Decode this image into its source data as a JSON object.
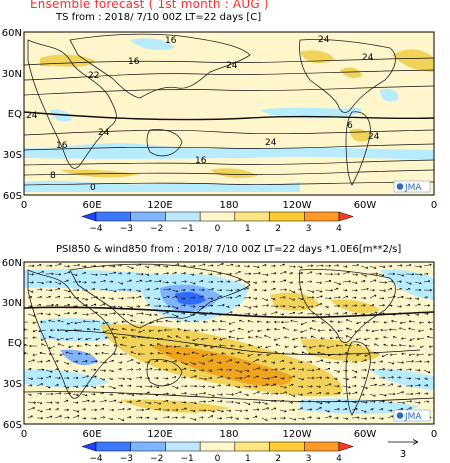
{
  "header": {
    "title": "Ensemble forecast ( 1st month : AUG )"
  },
  "panel_ts": {
    "subtitle": "TS       from : 2018/ 7/10 00Z LT=22 days  [C]",
    "contour_labels": [
      "16",
      "16",
      "22",
      "24",
      "24",
      "24",
      "24",
      "24",
      "16",
      "8",
      "0",
      "6",
      "16",
      "24",
      "24"
    ],
    "logo": "JMA"
  },
  "panel_psi": {
    "subtitle": "PSI850 & wind850 from : 2018/ 7/10 00Z LT=22 days   *1.0E6[m**2/s]",
    "logo": "JMA",
    "vector_ref": "3"
  },
  "axes": {
    "lat_labels": [
      "60N",
      "30N",
      "EQ",
      "30S",
      "60S"
    ],
    "lon_labels": [
      "0",
      "60E",
      "120E",
      "180",
      "120W",
      "60W",
      "0"
    ]
  },
  "colorbar": {
    "labels": [
      "-4",
      "-3",
      "-2",
      "-1",
      "0",
      "1",
      "2",
      "3",
      "4"
    ],
    "colors": [
      "#2040ff",
      "#3c78ff",
      "#7fb4ff",
      "#bfe8ff",
      "#fff6cc",
      "#ffe680",
      "#ffcc33",
      "#ff9a26",
      "#ff3b1f"
    ]
  },
  "colors": {
    "title": "#ff2a2a",
    "positive": "#f1d35a",
    "negative": "#b7ecff",
    "positive_strong": "#f0a51f",
    "negative_strong": "#2f6bff"
  }
}
